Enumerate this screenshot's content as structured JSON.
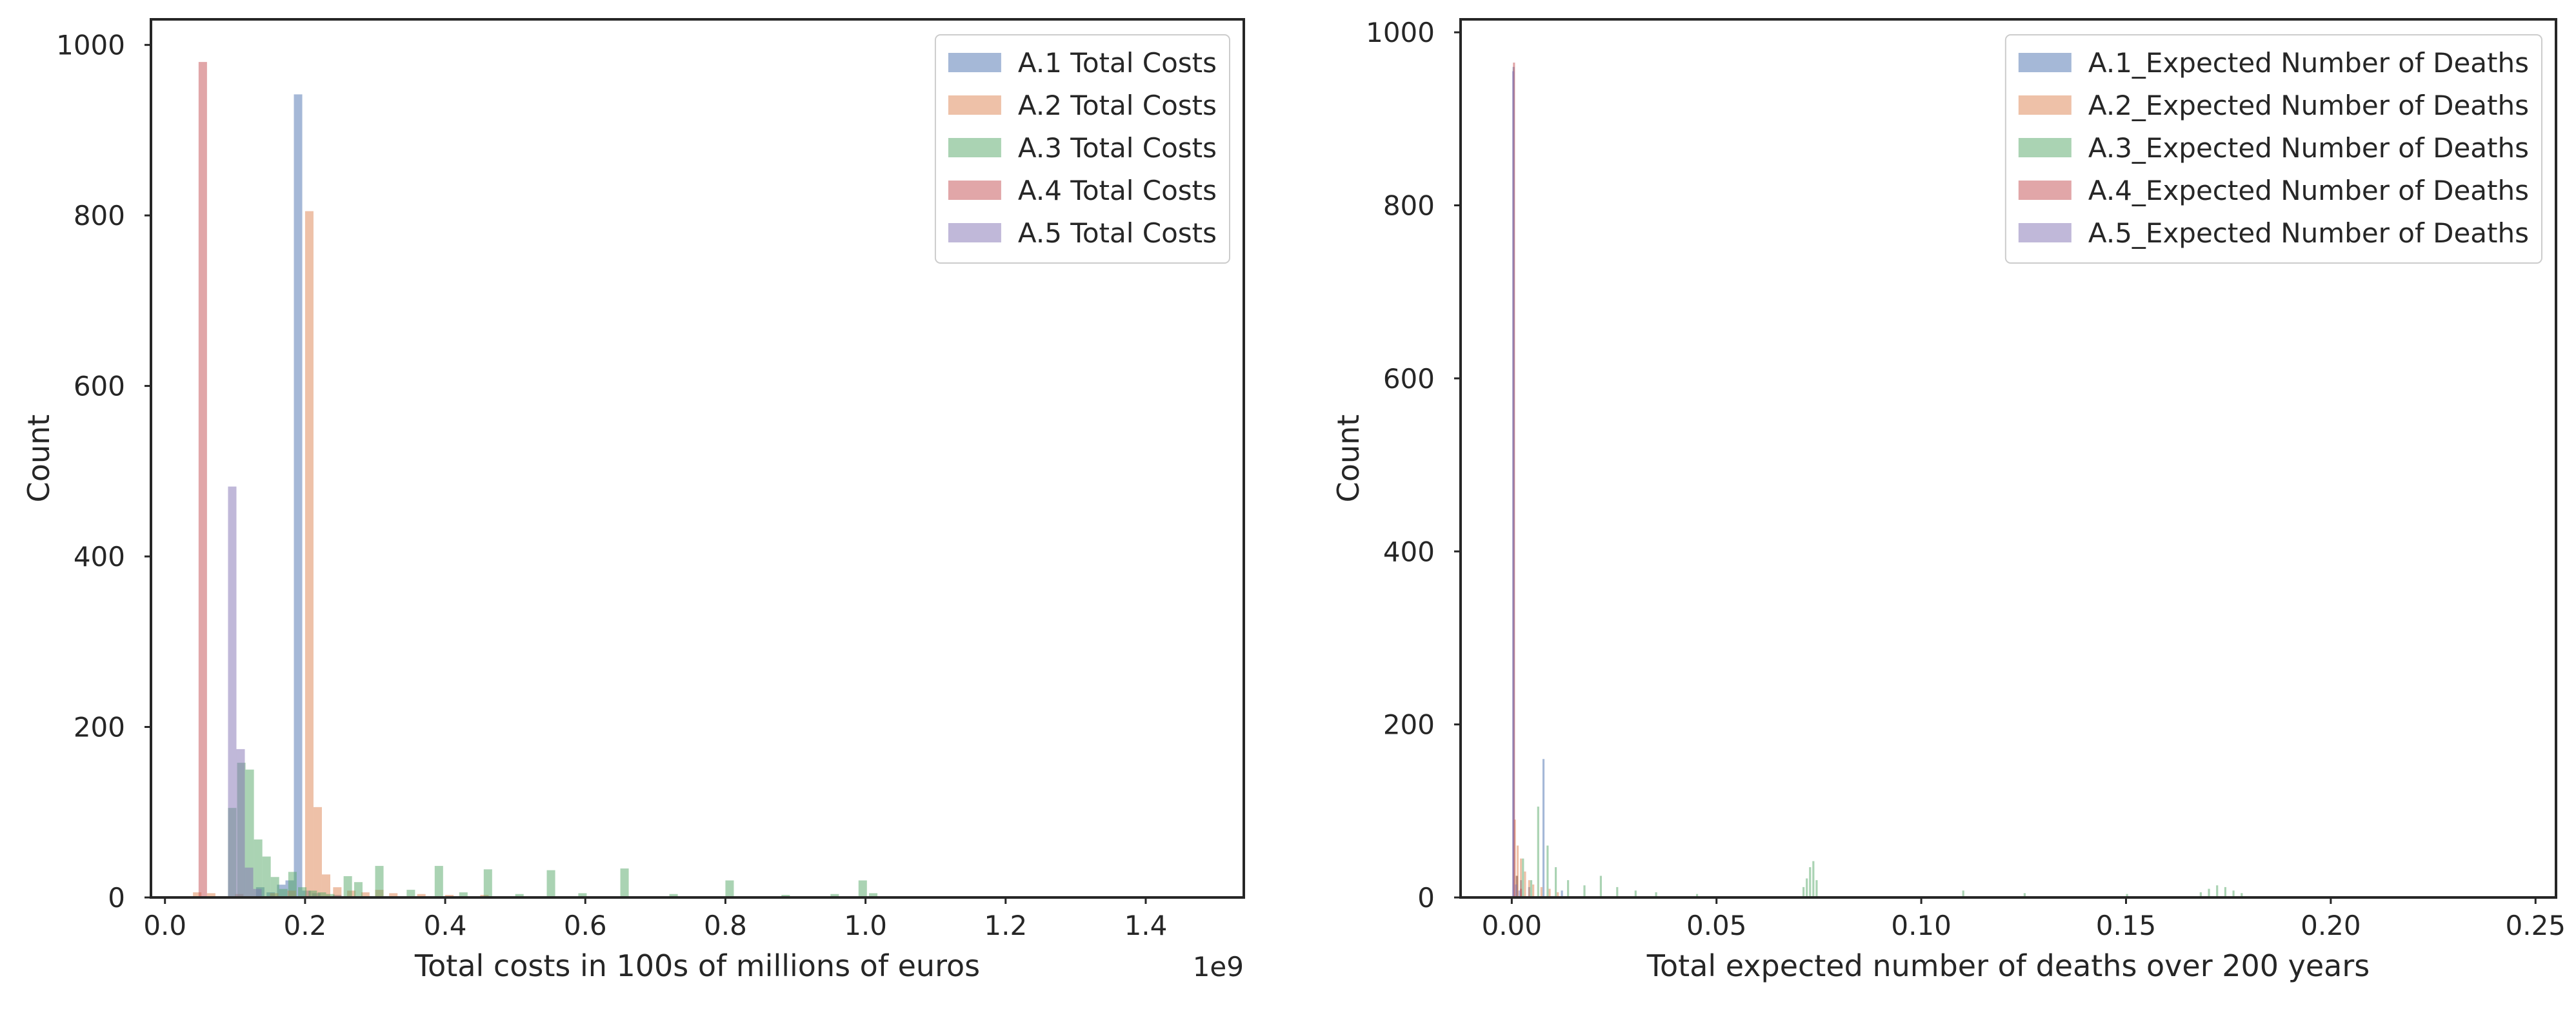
{
  "chart_data": [
    {
      "type": "bar",
      "subtype": "histogram",
      "xlabel": "Total costs in 100s of millions of euros",
      "ylabel": "Count",
      "xlim": [
        -0.02,
        1.54
      ],
      "ylim": [
        0,
        1030
      ],
      "x_offset_label": "1e9",
      "xticks": [
        {
          "v": 0.0,
          "label": "0.0"
        },
        {
          "v": 0.2,
          "label": "0.2"
        },
        {
          "v": 0.4,
          "label": "0.4"
        },
        {
          "v": 0.6,
          "label": "0.6"
        },
        {
          "v": 0.8,
          "label": "0.8"
        },
        {
          "v": 1.0,
          "label": "1.0"
        },
        {
          "v": 1.2,
          "label": "1.2"
        },
        {
          "v": 1.4,
          "label": "1.4"
        }
      ],
      "yticks": [
        {
          "v": 0,
          "label": "0"
        },
        {
          "v": 200,
          "label": "200"
        },
        {
          "v": 400,
          "label": "400"
        },
        {
          "v": 600,
          "label": "600"
        },
        {
          "v": 800,
          "label": "800"
        },
        {
          "v": 1000,
          "label": "1000"
        }
      ],
      "grid": false,
      "legend_position": "top-right",
      "series": [
        {
          "name": "A.1 Total Costs",
          "color": "#4c72b0",
          "bin_width": 0.012,
          "x": [
            0.13,
            0.145,
            0.16,
            0.172,
            0.184,
            0.196,
            0.21,
            0.24
          ],
          "y": [
            12,
            6,
            15,
            20,
            942,
            8,
            5,
            3
          ]
        },
        {
          "name": "A.2 Total Costs",
          "color": "#dd8452",
          "bin_width": 0.012,
          "x": [
            0.04,
            0.06,
            0.1,
            0.15,
            0.175,
            0.2,
            0.212,
            0.224,
            0.24,
            0.26,
            0.28,
            0.3,
            0.32,
            0.36,
            0.4,
            0.45
          ],
          "y": [
            6,
            5,
            4,
            5,
            8,
            805,
            106,
            27,
            12,
            8,
            6,
            9,
            5,
            4,
            3,
            3
          ]
        },
        {
          "name": "A.3 Total Costs",
          "color": "#55a868",
          "bin_width": 0.012,
          "x": [
            0.09,
            0.103,
            0.115,
            0.127,
            0.139,
            0.151,
            0.163,
            0.176,
            0.19,
            0.205,
            0.218,
            0.23,
            0.255,
            0.27,
            0.3,
            0.345,
            0.385,
            0.42,
            0.455,
            0.5,
            0.545,
            0.59,
            0.65,
            0.72,
            0.8,
            0.88,
            0.95,
            0.99,
            1.005
          ],
          "y": [
            105,
            158,
            150,
            68,
            48,
            24,
            10,
            30,
            12,
            8,
            6,
            4,
            25,
            18,
            37,
            9,
            37,
            6,
            33,
            4,
            32,
            5,
            34,
            4,
            20,
            3,
            4,
            20,
            5
          ]
        },
        {
          "name": "A.4 Total Costs",
          "color": "#c44e52",
          "bin_width": 0.012,
          "x": [
            0.048
          ],
          "y": [
            980
          ]
        },
        {
          "name": "A.5 Total Costs",
          "color": "#8172b3",
          "bin_width": 0.012,
          "x": [
            0.09,
            0.102,
            0.114,
            0.126
          ],
          "y": [
            482,
            174,
            35,
            10
          ]
        }
      ]
    },
    {
      "type": "bar",
      "subtype": "histogram",
      "xlabel": "Total expected number of deaths over 200 years",
      "ylabel": "Count",
      "xlim": [
        -0.0125,
        0.255
      ],
      "ylim": [
        0,
        1015
      ],
      "xticks": [
        {
          "v": 0.0,
          "label": "0.00"
        },
        {
          "v": 0.05,
          "label": "0.05"
        },
        {
          "v": 0.1,
          "label": "0.10"
        },
        {
          "v": 0.15,
          "label": "0.15"
        },
        {
          "v": 0.2,
          "label": "0.20"
        },
        {
          "v": 0.25,
          "label": "0.25"
        }
      ],
      "yticks": [
        {
          "v": 0,
          "label": "0"
        },
        {
          "v": 200,
          "label": "200"
        },
        {
          "v": 400,
          "label": "400"
        },
        {
          "v": 600,
          "label": "600"
        },
        {
          "v": 800,
          "label": "800"
        },
        {
          "v": 1000,
          "label": "1000"
        }
      ],
      "grid": false,
      "legend_position": "top-right",
      "series": [
        {
          "name": "A.1_Expected Number of Deaths",
          "color": "#4c72b0",
          "bin_width": 0.0005,
          "x": [
            0.0002,
            0.002,
            0.004,
            0.0075,
            0.012
          ],
          "y": [
            960,
            20,
            12,
            160,
            8
          ]
        },
        {
          "name": "A.2_Expected Number of Deaths",
          "color": "#dd8452",
          "bin_width": 0.0005,
          "x": [
            0.0005,
            0.0012,
            0.002,
            0.003,
            0.004,
            0.005,
            0.007,
            0.009,
            0.011
          ],
          "y": [
            90,
            60,
            45,
            30,
            20,
            15,
            12,
            10,
            6
          ]
        },
        {
          "name": "A.3_Expected Number of Deaths",
          "color": "#55a868",
          "bin_width": 0.0005,
          "x": [
            0.001,
            0.0025,
            0.0045,
            0.0062,
            0.0085,
            0.0105,
            0.0135,
            0.0175,
            0.0215,
            0.0255,
            0.03,
            0.035,
            0.045,
            0.071,
            0.0718,
            0.0726,
            0.0734,
            0.0742,
            0.11,
            0.125,
            0.15,
            0.168,
            0.17,
            0.172,
            0.174,
            0.176,
            0.178
          ],
          "y": [
            25,
            45,
            20,
            105,
            60,
            35,
            20,
            14,
            25,
            12,
            8,
            6,
            4,
            12,
            22,
            35,
            42,
            20,
            8,
            5,
            4,
            6,
            10,
            14,
            12,
            8,
            5
          ]
        },
        {
          "name": "A.4_Expected Number of Deaths",
          "color": "#c44e52",
          "bin_width": 0.0005,
          "x": [
            0.0003,
            0.001,
            0.002
          ],
          "y": [
            965,
            25,
            10
          ]
        },
        {
          "name": "A.5_Expected Number of Deaths",
          "color": "#8172b3",
          "bin_width": 0.0005,
          "x": [
            0.0001,
            0.0008,
            0.0016
          ],
          "y": [
            955,
            15,
            8
          ]
        }
      ]
    }
  ]
}
